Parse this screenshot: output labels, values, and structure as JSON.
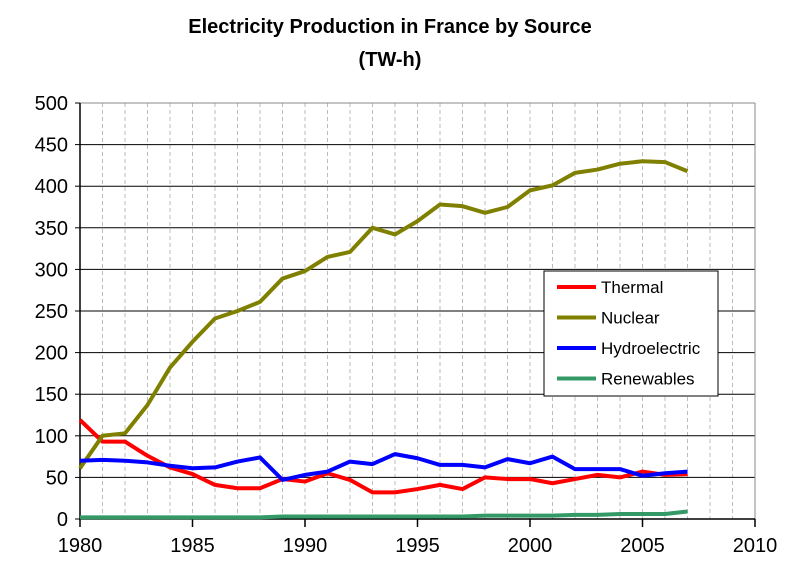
{
  "chart_data": {
    "type": "line",
    "title": "Electricity Production in France by Source",
    "subtitle": "(TW-h)",
    "xlabel": "",
    "ylabel": "",
    "xlim": [
      1980,
      2010
    ],
    "ylim": [
      0,
      500
    ],
    "xticks": [
      1980,
      1985,
      1990,
      1995,
      2000,
      2005,
      2010
    ],
    "yticks": [
      0,
      50,
      100,
      150,
      200,
      250,
      300,
      350,
      400,
      450,
      500
    ],
    "grid": true,
    "legend_position": "center-right",
    "x": [
      1980,
      1981,
      1982,
      1983,
      1984,
      1985,
      1986,
      1987,
      1988,
      1989,
      1990,
      1991,
      1992,
      1993,
      1994,
      1995,
      1996,
      1997,
      1998,
      1999,
      2000,
      2001,
      2002,
      2003,
      2004,
      2005,
      2006,
      2007
    ],
    "series": [
      {
        "name": "Thermal",
        "color": "#ff0000",
        "values": [
          119,
          93,
          93,
          76,
          62,
          54,
          41,
          37,
          37,
          48,
          45,
          55,
          47,
          32,
          32,
          36,
          41,
          36,
          50,
          48,
          48,
          43,
          48,
          53,
          50,
          57,
          53,
          54
        ]
      },
      {
        "name": "Nuclear",
        "color": "#808000",
        "values": [
          61,
          100,
          103,
          137,
          182,
          213,
          241,
          250,
          261,
          289,
          298,
          315,
          321,
          350,
          342,
          358,
          378,
          376,
          368,
          375,
          395,
          401,
          416,
          420,
          427,
          430,
          429,
          418
        ]
      },
      {
        "name": "Hydroelectric",
        "color": "#0000ff",
        "values": [
          70,
          71,
          70,
          68,
          64,
          61,
          62,
          69,
          74,
          47,
          53,
          57,
          69,
          66,
          78,
          73,
          65,
          65,
          62,
          72,
          67,
          75,
          60,
          60,
          60,
          52,
          55,
          57
        ]
      },
      {
        "name": "Renewables",
        "color": "#339966",
        "values": [
          2,
          2,
          2,
          2,
          2,
          2,
          2,
          2,
          2,
          3,
          3,
          3,
          3,
          3,
          3,
          3,
          3,
          3,
          4,
          4,
          4,
          4,
          5,
          5,
          6,
          6,
          6,
          9
        ]
      }
    ]
  }
}
